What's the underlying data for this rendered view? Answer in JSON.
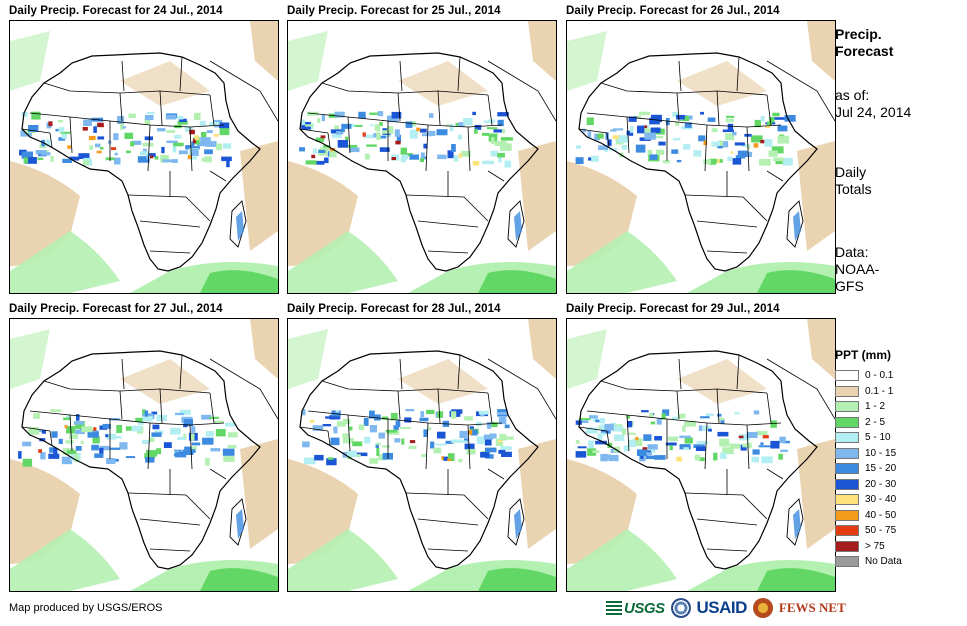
{
  "panels": [
    {
      "title": "Daily Precip. Forecast for 24 Jul., 2014"
    },
    {
      "title": "Daily Precip. Forecast for 25 Jul., 2014"
    },
    {
      "title": "Daily Precip. Forecast for 26 Jul., 2014"
    },
    {
      "title": "Daily Precip. Forecast for 27 Jul., 2014"
    },
    {
      "title": "Daily Precip. Forecast for 28 Jul., 2014"
    },
    {
      "title": "Daily Precip. Forecast for 29 Jul., 2014"
    }
  ],
  "sidebar": {
    "title_line1": "Precip.",
    "title_line2": "Forecast",
    "asof_label": "as of:",
    "asof_date": "Jul 24, 2014",
    "totals_line1": "Daily",
    "totals_line2": "Totals",
    "data_label": "Data:",
    "data_src1": "NOAA-",
    "data_src2": "GFS"
  },
  "legend": {
    "title": "PPT (mm)",
    "items": [
      {
        "label": "0 - 0.1",
        "color": "#ffffff"
      },
      {
        "label": "0.1 - 1",
        "color": "#ead3b0"
      },
      {
        "label": "1 - 2",
        "color": "#b5f0b3"
      },
      {
        "label": "2 - 5",
        "color": "#63d765"
      },
      {
        "label": "5 - 10",
        "color": "#b3eef2"
      },
      {
        "label": "10 - 15",
        "color": "#7fb8ee"
      },
      {
        "label": "15 - 20",
        "color": "#3d8be0"
      },
      {
        "label": "20 - 30",
        "color": "#1a55d6"
      },
      {
        "label": "30 - 40",
        "color": "#fde27a"
      },
      {
        "label": "40 - 50",
        "color": "#f59b1c"
      },
      {
        "label": "50 - 75",
        "color": "#e43c13"
      },
      {
        "label": "> 75",
        "color": "#a61c1c"
      },
      {
        "label": "No Data",
        "color": "#9a9a9a"
      }
    ]
  },
  "footer": {
    "credit": "Map produced by USGS/EROS",
    "logo_usgs": "USGS",
    "logo_usaid": "USAID",
    "logo_fews": "FEWS NET"
  }
}
